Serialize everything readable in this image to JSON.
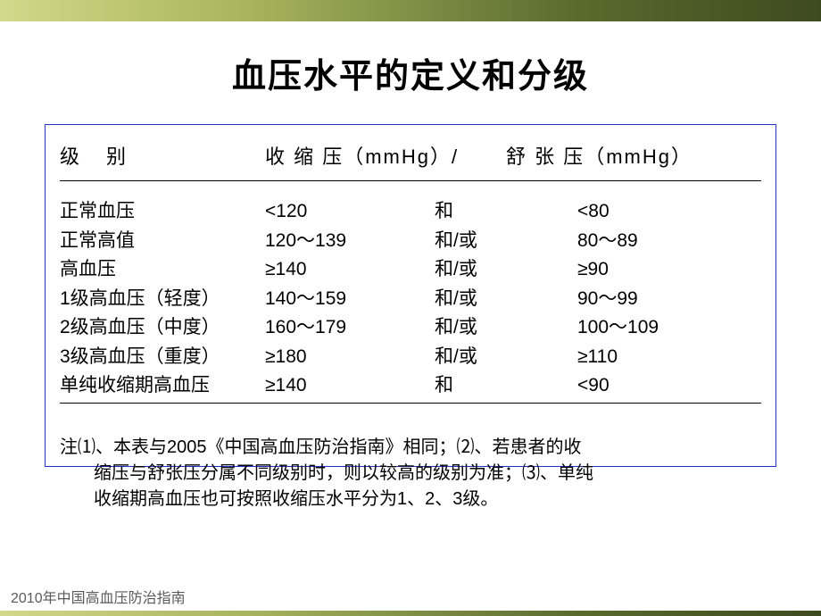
{
  "title": "血压水平的定义和分级",
  "table": {
    "headers": {
      "level": "级　别",
      "systolic": "收 缩 压（mmHg）/",
      "diastolic": "舒 张 压（mmHg）"
    },
    "rows": [
      {
        "level": "正常血压",
        "systolic": "<120",
        "conj": "和",
        "diastolic": "<80"
      },
      {
        "level": "正常高值",
        "systolic": "120～139",
        "conj": "和/或",
        "diastolic": "80～89"
      },
      {
        "level": "高血压",
        "systolic": "≥140",
        "conj": "和/或",
        "diastolic": "≥90"
      },
      {
        "level": "1级高血压（轻度）",
        "systolic": "140～159",
        "conj": "和/或",
        "diastolic": "90～99"
      },
      {
        "level": "2级高血压（中度）",
        "systolic": "160～179",
        "conj": "和/或",
        "diastolic": "100～109"
      },
      {
        "level": "3级高血压（重度）",
        "systolic": "≥180",
        "conj": "和/或",
        "diastolic": "≥110"
      },
      {
        "level": "单纯收缩期高血压",
        "systolic": "≥140",
        "conj": "和",
        "diastolic": "<90"
      }
    ]
  },
  "note_line1": "注⑴、本表与2005《中国高血压防治指南》相同；⑵、若患者的收",
  "note_line2": "缩压与舒张压分属不同级别时，则以较高的级别为准；⑶、单纯",
  "note_line3": "收缩期高血压也可按照收缩压水平分为1、2、3级。",
  "footer": "2010年中国高血压防治指南",
  "colors": {
    "border": "#2233cc",
    "text": "#000000",
    "footer_text": "#5a5a5a"
  }
}
